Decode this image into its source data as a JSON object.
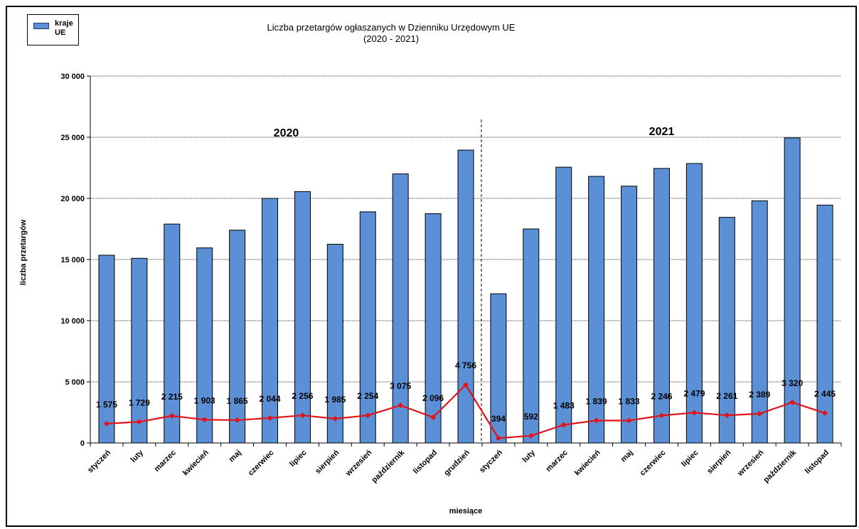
{
  "chart_data": {
    "type": "bar",
    "title_line1": "Liczba przetargów ogłaszanych w Dzienniku Urzędowym UE",
    "title_line2": "(2020 - 2021)",
    "xlabel": "miesiące",
    "ylabel": "liczba przetargów",
    "ylim": [
      0,
      30000
    ],
    "yticks": [
      "0",
      "5 000",
      "10 000",
      "15 000",
      "20 000",
      "25 000",
      "30 000"
    ],
    "ytick_values": [
      0,
      5000,
      10000,
      15000,
      20000,
      25000,
      30000
    ],
    "grid": true,
    "legend_position": "top-left",
    "year_labels": [
      "2020",
      "2021"
    ],
    "categories": [
      "styczeń",
      "luty",
      "marzec",
      "kwiecień",
      "maj",
      "czerwiec",
      "lipiec",
      "sierpień",
      "wrzesień",
      "październik",
      "listopad",
      "grudzień",
      "styczeń",
      "luty",
      "marzec",
      "kwiecień",
      "maj",
      "czerwiec",
      "lipiec",
      "sierpień",
      "wrzesień",
      "październik",
      "listopad"
    ],
    "series": [
      {
        "name": "kraje UE",
        "kind": "bar",
        "color": "#5b8fd6",
        "values": [
          15350,
          15100,
          17900,
          15950,
          17400,
          20000,
          20550,
          16250,
          18900,
          22000,
          18750,
          23950,
          12200,
          17500,
          22550,
          21800,
          21000,
          22450,
          22850,
          18450,
          19800,
          24950,
          19450
        ]
      },
      {
        "kind": "line",
        "color": "#e0141c",
        "values": [
          1575,
          1729,
          2215,
          1903,
          1865,
          2044,
          2256,
          1985,
          2254,
          3075,
          2096,
          4756,
          394,
          592,
          1483,
          1839,
          1833,
          2246,
          2479,
          2261,
          2389,
          3320,
          2445
        ],
        "labels": [
          "1 575",
          "1 729",
          "2 215",
          "1 903",
          "1 865",
          "2 044",
          "2 256",
          "1 985",
          "2 254",
          "3 075",
          "2 096",
          "4 756",
          "394",
          "592",
          "1 483",
          "1 839",
          "1 833",
          "2 246",
          "2 479",
          "2 261",
          "2 389",
          "3 320",
          "2 445"
        ]
      }
    ]
  }
}
